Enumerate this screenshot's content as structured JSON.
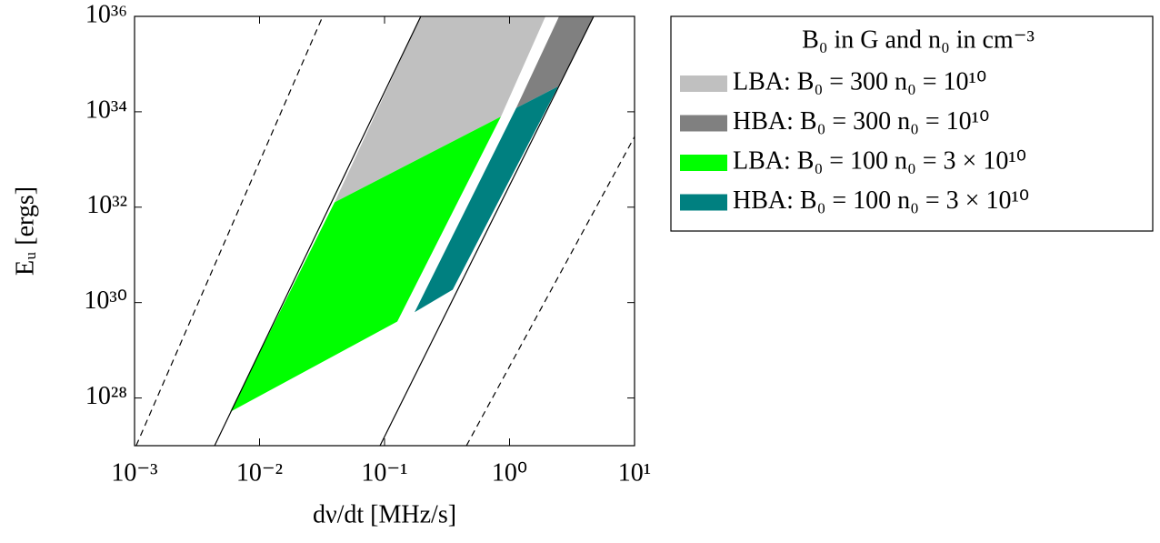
{
  "chart_data": {
    "type": "area",
    "x_label": "dν/dt [MHz/s]",
    "y_label": "Eᵤ [ergs]",
    "log_x": true,
    "log_y": true,
    "grid": false,
    "xlim": [
      0.001,
      10
    ],
    "ylim": [
      1e+27,
      1e+36
    ],
    "xticks": [
      {
        "value": 0.001,
        "label": "10⁻³"
      },
      {
        "value": 0.01,
        "label": "10⁻²"
      },
      {
        "value": 0.1,
        "label": "10⁻¹"
      },
      {
        "value": 1,
        "label": "10⁰"
      },
      {
        "value": 10,
        "label": "10¹"
      }
    ],
    "yticks": [
      {
        "value": 1e+28,
        "label": "10²⁸"
      },
      {
        "value": 1e+30,
        "label": "10³⁰"
      },
      {
        "value": 1e+32,
        "label": "10³²"
      },
      {
        "value": 1e+34,
        "label": "10³⁴"
      },
      {
        "value": 1e+36,
        "label": "10³⁶"
      }
    ],
    "legend_title": "B₀ in G and n₀ in cm⁻³",
    "legend_position": "outside-right",
    "series": [
      {
        "type": "area",
        "name": "LBA: B₀ = 300 n₀ = 10¹⁰",
        "color": "#c0c0c0",
        "x": [
          0.195,
          1.94,
          0.853,
          0.0398
        ],
        "values": [
          1e+36,
          1e+36,
          7.9e+33,
          1.26e+32
        ]
      },
      {
        "type": "area",
        "name": "HBA: B₀ = 300 n₀ = 10¹⁰",
        "color": "#808080",
        "x": [
          2.49,
          4.71,
          2.45,
          1.13
        ],
        "values": [
          1e+36,
          1e+36,
          3.4e+34,
          1.2e+34
        ]
      },
      {
        "type": "area",
        "name": "LBA: B₀ = 100 n₀ = 3 × 10¹⁰",
        "color": "#00ff00",
        "x": [
          0.00581,
          0.0398,
          0.853,
          0.1265
        ],
        "values": [
          5.1e+27,
          1.26e+32,
          7.9e+33,
          4e+29
        ]
      },
      {
        "type": "area",
        "name": "HBA: B₀ = 100 n₀ = 3 × 10¹⁰",
        "color": "#008080",
        "x": [
          1.13,
          2.45,
          0.351,
          0.174
        ],
        "values": [
          1.2e+34,
          3.4e+34,
          1.86e+30,
          6.3e+29
        ]
      },
      {
        "type": "line",
        "color": "#000000",
        "dashed": false,
        "x": [
          0.00437,
          0.195
        ],
        "values": [
          1e+27,
          1e+36
        ]
      },
      {
        "type": "line",
        "color": "#000000",
        "dashed": false,
        "x": [
          0.092,
          4.71
        ],
        "values": [
          1e+27,
          1e+36
        ]
      },
      {
        "type": "line",
        "color": "#000000",
        "dashed": true,
        "x": [
          0.00103,
          0.032
        ],
        "values": [
          1e+27,
          1e+36
        ]
      },
      {
        "type": "line",
        "color": "#000000",
        "dashed": true,
        "x": [
          0.452,
          10
        ],
        "values": [
          1e+27,
          3e+33
        ]
      }
    ]
  }
}
